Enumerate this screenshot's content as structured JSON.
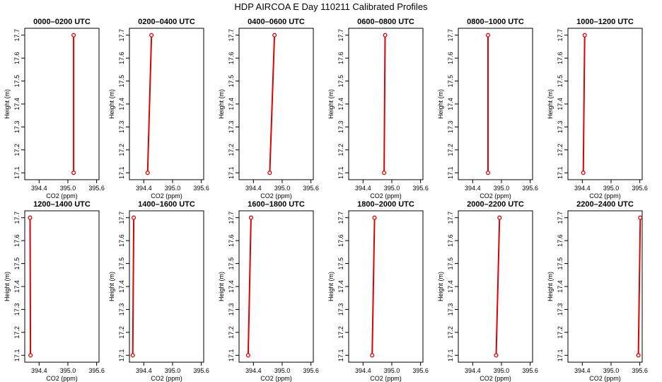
{
  "title": "HDP AIRCOA E  Day 110211  Calibrated Profiles",
  "chart_data": [
    {
      "type": "line",
      "title": "0000–0200 UTC",
      "xlabel": "CO2 (ppm)",
      "ylabel": "Height (m)",
      "x": [
        395.12,
        395.12
      ],
      "y": [
        17.1,
        17.7
      ],
      "xlim": [
        394.1,
        395.65
      ],
      "ylim": [
        17.07,
        17.73
      ],
      "xticks": [
        "394.4",
        "395.0",
        "395.6"
      ],
      "yticks": [
        "17.1",
        "17.2",
        "17.3",
        "17.4",
        "17.5",
        "17.6",
        "17.7"
      ],
      "color": "#dd0000"
    },
    {
      "type": "line",
      "title": "0200–0400 UTC",
      "xlabel": "CO2 (ppm)",
      "ylabel": "Height (m)",
      "x": [
        394.48,
        394.56
      ],
      "y": [
        17.1,
        17.7
      ],
      "xlim": [
        394.1,
        395.65
      ],
      "ylim": [
        17.07,
        17.73
      ],
      "xticks": [
        "394.4",
        "395.0",
        "395.6"
      ],
      "yticks": [
        "17.1",
        "17.2",
        "17.3",
        "17.4",
        "17.5",
        "17.6",
        "17.7"
      ],
      "color": "#dd0000"
    },
    {
      "type": "line",
      "title": "0400–0600 UTC",
      "xlabel": "CO2 (ppm)",
      "ylabel": "Height (m)",
      "x": [
        394.74,
        394.84
      ],
      "y": [
        17.1,
        17.7
      ],
      "xlim": [
        394.1,
        395.65
      ],
      "ylim": [
        17.07,
        17.73
      ],
      "xticks": [
        "394.4",
        "395.0",
        "395.6"
      ],
      "yticks": [
        "17.1",
        "17.2",
        "17.3",
        "17.4",
        "17.5",
        "17.6",
        "17.7"
      ],
      "color": "#dd0000"
    },
    {
      "type": "line",
      "title": "0600–0800 UTC",
      "xlabel": "CO2 (ppm)",
      "ylabel": "Height (m)",
      "x": [
        394.84,
        394.86
      ],
      "y": [
        17.1,
        17.7
      ],
      "xlim": [
        394.1,
        395.65
      ],
      "ylim": [
        17.07,
        17.73
      ],
      "xticks": [
        "394.4",
        "395.0",
        "395.6"
      ],
      "yticks": [
        "17.1",
        "17.2",
        "17.3",
        "17.4",
        "17.5",
        "17.6",
        "17.7"
      ],
      "color": "#dd0000"
    },
    {
      "type": "line",
      "title": "0800–1000 UTC",
      "xlabel": "CO2 (ppm)",
      "ylabel": "Height (m)",
      "x": [
        394.72,
        394.72
      ],
      "y": [
        17.1,
        17.7
      ],
      "xlim": [
        394.1,
        395.65
      ],
      "ylim": [
        17.07,
        17.73
      ],
      "xticks": [
        "394.4",
        "395.0",
        "395.6"
      ],
      "yticks": [
        "17.1",
        "17.2",
        "17.3",
        "17.4",
        "17.5",
        "17.6",
        "17.7"
      ],
      "color": "#dd0000"
    },
    {
      "type": "line",
      "title": "1000–1200 UTC",
      "xlabel": "CO2 (ppm)",
      "ylabel": "Height (m)",
      "x": [
        394.42,
        394.45
      ],
      "y": [
        17.1,
        17.7
      ],
      "xlim": [
        394.1,
        395.65
      ],
      "ylim": [
        17.07,
        17.73
      ],
      "xticks": [
        "394.4",
        "395.0",
        "395.6"
      ],
      "yticks": [
        "17.1",
        "17.2",
        "17.3",
        "17.4",
        "17.5",
        "17.6",
        "17.7"
      ],
      "color": "#dd0000"
    },
    {
      "type": "line",
      "title": "1200–1400 UTC",
      "xlabel": "CO2 (ppm)",
      "ylabel": "Height (m)",
      "x": [
        394.22,
        394.21
      ],
      "y": [
        17.1,
        17.7
      ],
      "xlim": [
        394.1,
        395.65
      ],
      "ylim": [
        17.07,
        17.73
      ],
      "xticks": [
        "394.4",
        "395.0",
        "395.6"
      ],
      "yticks": [
        "17.1",
        "17.2",
        "17.3",
        "17.4",
        "17.5",
        "17.6",
        "17.7"
      ],
      "color": "#dd0000"
    },
    {
      "type": "line",
      "title": "1400–1600 UTC",
      "xlabel": "CO2 (ppm)",
      "ylabel": "Height (m)",
      "x": [
        394.17,
        394.19
      ],
      "y": [
        17.1,
        17.7
      ],
      "xlim": [
        394.1,
        395.65
      ],
      "ylim": [
        17.07,
        17.73
      ],
      "xticks": [
        "394.4",
        "395.0",
        "395.6"
      ],
      "yticks": [
        "17.1",
        "17.2",
        "17.3",
        "17.4",
        "17.5",
        "17.6",
        "17.7"
      ],
      "color": "#dd0000"
    },
    {
      "type": "line",
      "title": "1600–1800 UTC",
      "xlabel": "CO2 (ppm)",
      "ylabel": "Height (m)",
      "x": [
        394.29,
        394.35
      ],
      "y": [
        17.1,
        17.7
      ],
      "xlim": [
        394.1,
        395.65
      ],
      "ylim": [
        17.07,
        17.73
      ],
      "xticks": [
        "394.4",
        "395.0",
        "395.6"
      ],
      "yticks": [
        "17.1",
        "17.2",
        "17.3",
        "17.4",
        "17.5",
        "17.6",
        "17.7"
      ],
      "color": "#dd0000"
    },
    {
      "type": "line",
      "title": "1800–2000 UTC",
      "xlabel": "CO2 (ppm)",
      "ylabel": "Height (m)",
      "x": [
        394.59,
        394.64
      ],
      "y": [
        17.1,
        17.7
      ],
      "xlim": [
        394.1,
        395.65
      ],
      "ylim": [
        17.07,
        17.73
      ],
      "xticks": [
        "394.4",
        "395.0",
        "395.6"
      ],
      "yticks": [
        "17.1",
        "17.2",
        "17.3",
        "17.4",
        "17.5",
        "17.6",
        "17.7"
      ],
      "color": "#dd0000"
    },
    {
      "type": "line",
      "title": "2000–2200 UTC",
      "xlabel": "CO2 (ppm)",
      "ylabel": "Height (m)",
      "x": [
        394.89,
        394.96
      ],
      "y": [
        17.1,
        17.7
      ],
      "xlim": [
        394.1,
        395.65
      ],
      "ylim": [
        17.07,
        17.73
      ],
      "xticks": [
        "394.4",
        "395.0",
        "395.6"
      ],
      "yticks": [
        "17.1",
        "17.2",
        "17.3",
        "17.4",
        "17.5",
        "17.6",
        "17.7"
      ],
      "color": "#dd0000"
    },
    {
      "type": "line",
      "title": "2200–2400 UTC",
      "xlabel": "CO2 (ppm)",
      "ylabel": "Height (m)",
      "x": [
        395.57,
        395.61
      ],
      "y": [
        17.1,
        17.7
      ],
      "xlim": [
        394.1,
        395.65
      ],
      "ylim": [
        17.07,
        17.73
      ],
      "xticks": [
        "394.4",
        "395.0",
        "395.6"
      ],
      "yticks": [
        "17.1",
        "17.2",
        "17.3",
        "17.4",
        "17.5",
        "17.6",
        "17.7"
      ],
      "color": "#dd0000"
    }
  ]
}
